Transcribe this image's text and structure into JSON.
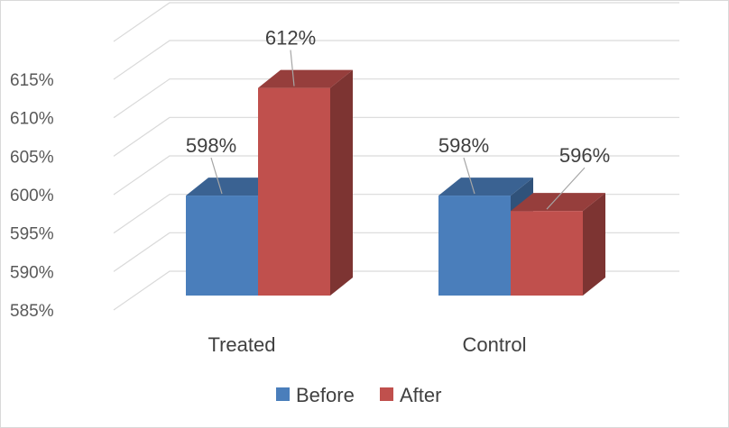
{
  "chart_data": {
    "type": "bar",
    "categories": [
      "Treated",
      "Control"
    ],
    "series": [
      {
        "name": "Before",
        "values": [
          598,
          598
        ],
        "labels": [
          "598%",
          "598%"
        ],
        "color": "#4a7ebb"
      },
      {
        "name": "After",
        "values": [
          612,
          596
        ],
        "labels": [
          "612%",
          "596%"
        ],
        "color": "#c0504d"
      }
    ],
    "ylim": [
      585,
      615
    ],
    "yticks": [
      585,
      590,
      595,
      600,
      605,
      610,
      615
    ],
    "ytick_labels": [
      "585%",
      "590%",
      "595%",
      "600%",
      "605%",
      "610%",
      "615%"
    ],
    "grid": true,
    "legend_placement": "bottom"
  }
}
